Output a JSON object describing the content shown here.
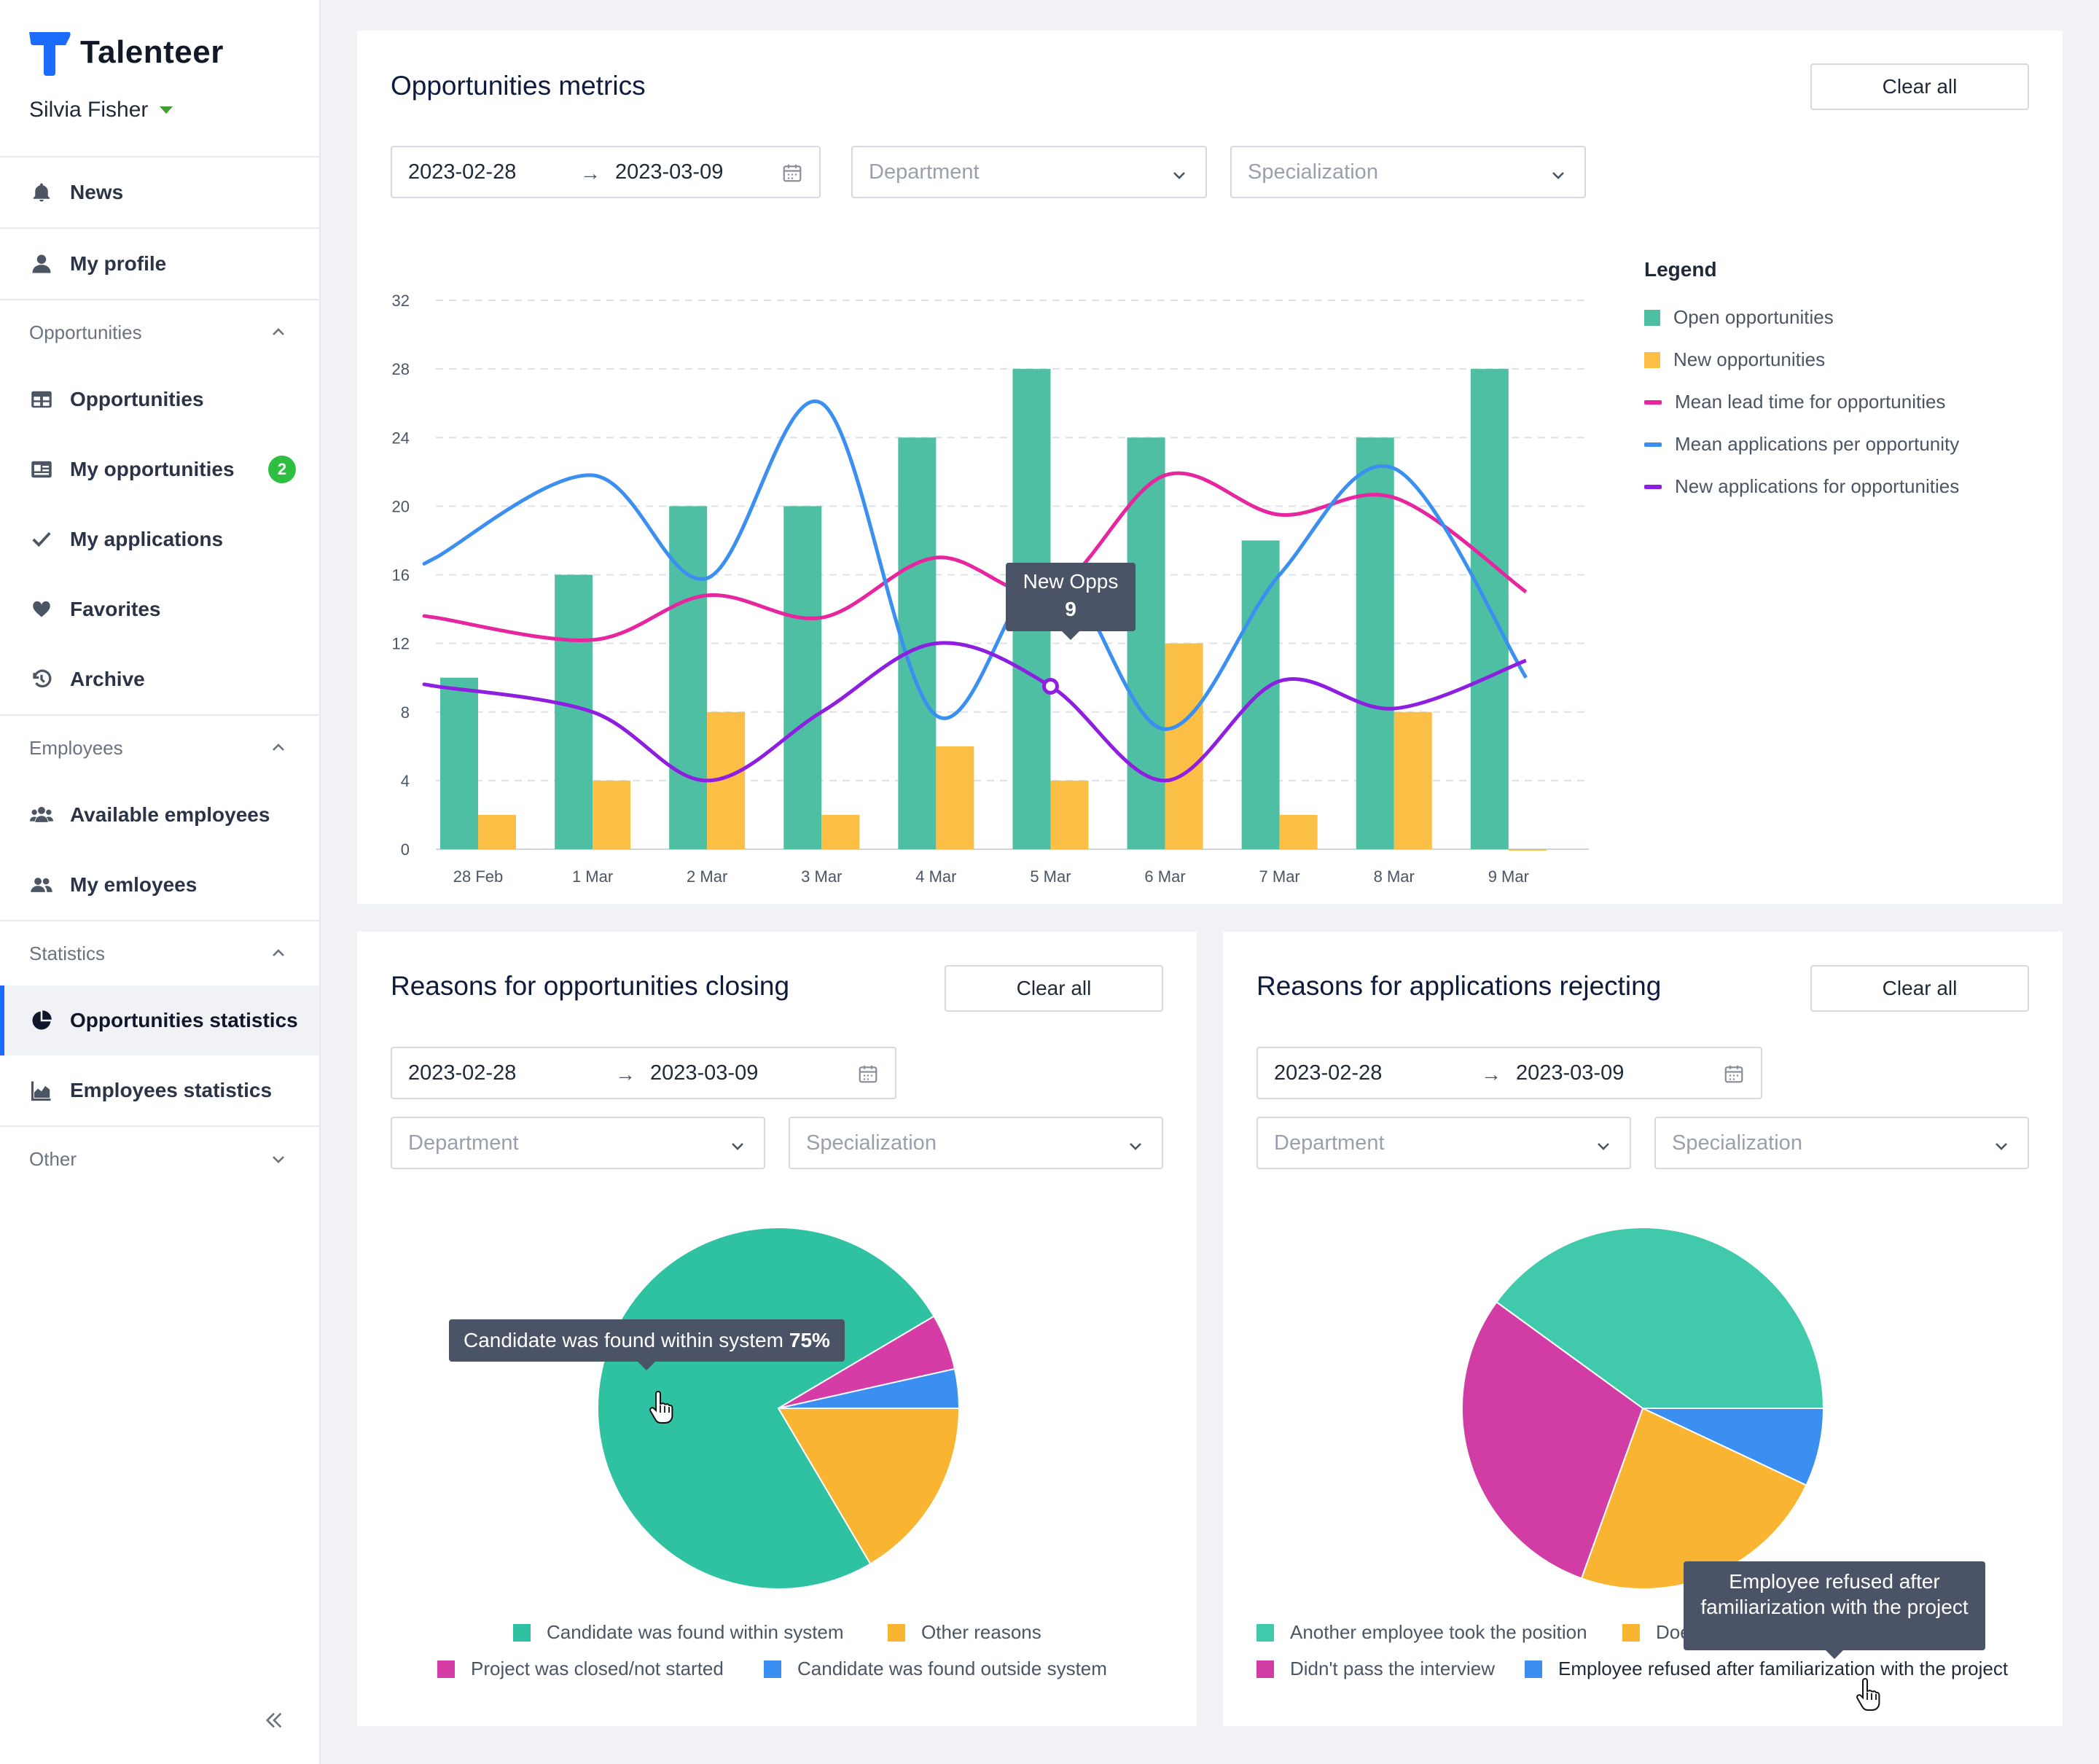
{
  "app": {
    "name": "Talenteer",
    "user": "Silvia Fisher"
  },
  "sidebar": {
    "top_items": [
      {
        "label": "News",
        "icon": "bell-icon"
      },
      {
        "label": "My profile",
        "icon": "user-icon"
      }
    ],
    "sections": [
      {
        "title": "Opportunities",
        "items": [
          {
            "label": "Opportunities",
            "icon": "table-icon"
          },
          {
            "label": "My opportunities",
            "icon": "id-card-icon",
            "badge": "2"
          },
          {
            "label": "My applications",
            "icon": "check-icon"
          },
          {
            "label": "Favorites",
            "icon": "heart-icon"
          },
          {
            "label": "Archive",
            "icon": "history-icon"
          }
        ]
      },
      {
        "title": "Employees",
        "items": [
          {
            "label": "Available employees",
            "icon": "users-icon"
          },
          {
            "label": "My emloyees",
            "icon": "user-group-icon"
          }
        ]
      },
      {
        "title": "Statistics",
        "items": [
          {
            "label": "Opportunities statistics",
            "icon": "pie-chart-icon",
            "active": true
          },
          {
            "label": "Employees statistics",
            "icon": "area-chart-icon"
          }
        ]
      },
      {
        "title": "Other",
        "items": []
      }
    ],
    "collapse_label": "«"
  },
  "metrics": {
    "title": "Opportunities metrics",
    "clear_label": "Clear all",
    "date_from": "2023-02-28",
    "date_to": "2023-03-09",
    "department_placeholder": "Department",
    "specialization_placeholder": "Specialization",
    "legend_title": "Legend",
    "tooltip": {
      "label": "New Opps",
      "value": "9"
    }
  },
  "closing": {
    "title": "Reasons for opportunities closing",
    "clear_label": "Clear all",
    "date_from": "2023-02-28",
    "date_to": "2023-03-09",
    "department_placeholder": "Department",
    "specialization_placeholder": "Specialization",
    "tooltip": {
      "label": "Candidate was found within system",
      "value": "75%"
    }
  },
  "rejecting": {
    "title": "Reasons for applications rejecting",
    "clear_label": "Clear all",
    "date_from": "2023-02-28",
    "date_to": "2023-03-09",
    "department_placeholder": "Department",
    "specialization_placeholder": "Specialization",
    "tooltip": {
      "label": "Employee refused after familiarization with the project"
    }
  },
  "colors": {
    "teal": "#4fbfa4",
    "orange": "#fbbf45",
    "pink": "#e6259e",
    "blue": "#3b8ff0",
    "purple": "#8e1ee0",
    "active_accent": "#1b6bff",
    "badge": "#2fbf40"
  },
  "chart_data": [
    {
      "type": "bar",
      "categories": [
        "28 Feb",
        "1 Mar",
        "2 Mar",
        "3 Mar",
        "4 Mar",
        "5 Mar",
        "6 Mar",
        "7 Mar",
        "8 Mar",
        "9 Mar"
      ],
      "ylim": [
        0,
        32
      ],
      "yticks": [
        0,
        4,
        8,
        12,
        16,
        20,
        24,
        28,
        32
      ],
      "grid": true,
      "legend_position": "right",
      "series": [
        {
          "name": "Open opportunities",
          "kind": "bar",
          "color": "#4fbfa4",
          "values": [
            10,
            16,
            20,
            20,
            24,
            28,
            24,
            18,
            24,
            28
          ]
        },
        {
          "name": "New opportunities",
          "kind": "bar",
          "color": "#fbbf45",
          "values": [
            2,
            4,
            8,
            2,
            6,
            4,
            12,
            2,
            8,
            0
          ]
        },
        {
          "name": "Mean lead time for opportunities",
          "kind": "line",
          "color": "#e6259e",
          "values": [
            13.5,
            12.2,
            14.8,
            13.5,
            17,
            15,
            21.8,
            19.5,
            20.5,
            15
          ]
        },
        {
          "name": "Mean applications per opportunity",
          "kind": "line",
          "color": "#3b8ff0",
          "values": [
            17,
            21.8,
            15.8,
            26,
            7.8,
            16.4,
            7,
            16,
            22.2,
            10
          ]
        },
        {
          "name": "New applications for opportunities",
          "kind": "line",
          "color": "#8e1ee0",
          "values": [
            9.5,
            8,
            4,
            8,
            12,
            9.5,
            4,
            9.8,
            8.2,
            11
          ]
        }
      ]
    },
    {
      "type": "pie",
      "title": "Reasons for opportunities closing",
      "slices": [
        {
          "name": "Candidate was found within system",
          "value": 75,
          "color": "#2ec1a2"
        },
        {
          "name": "Project was closed/not started",
          "value": 5,
          "color": "#d63ca6"
        },
        {
          "name": "Candidate was found outside system",
          "value": 3.5,
          "color": "#3b8ff0"
        },
        {
          "name": "Other reasons",
          "value": 16.5,
          "color": "#f9b531"
        }
      ]
    },
    {
      "type": "pie",
      "title": "Reasons for applications rejecting",
      "slices": [
        {
          "name": "Another employee took the position",
          "value": 40,
          "color": "#40c9ab"
        },
        {
          "name": "Employee refused after familiarization with the project",
          "value": 7,
          "color": "#3b8ff0"
        },
        {
          "name": "Doesn't",
          "value": 23.5,
          "color": "#f9b531"
        },
        {
          "name": "Didn't pass the interview",
          "value": 29.5,
          "color": "#d13da5"
        }
      ]
    }
  ]
}
